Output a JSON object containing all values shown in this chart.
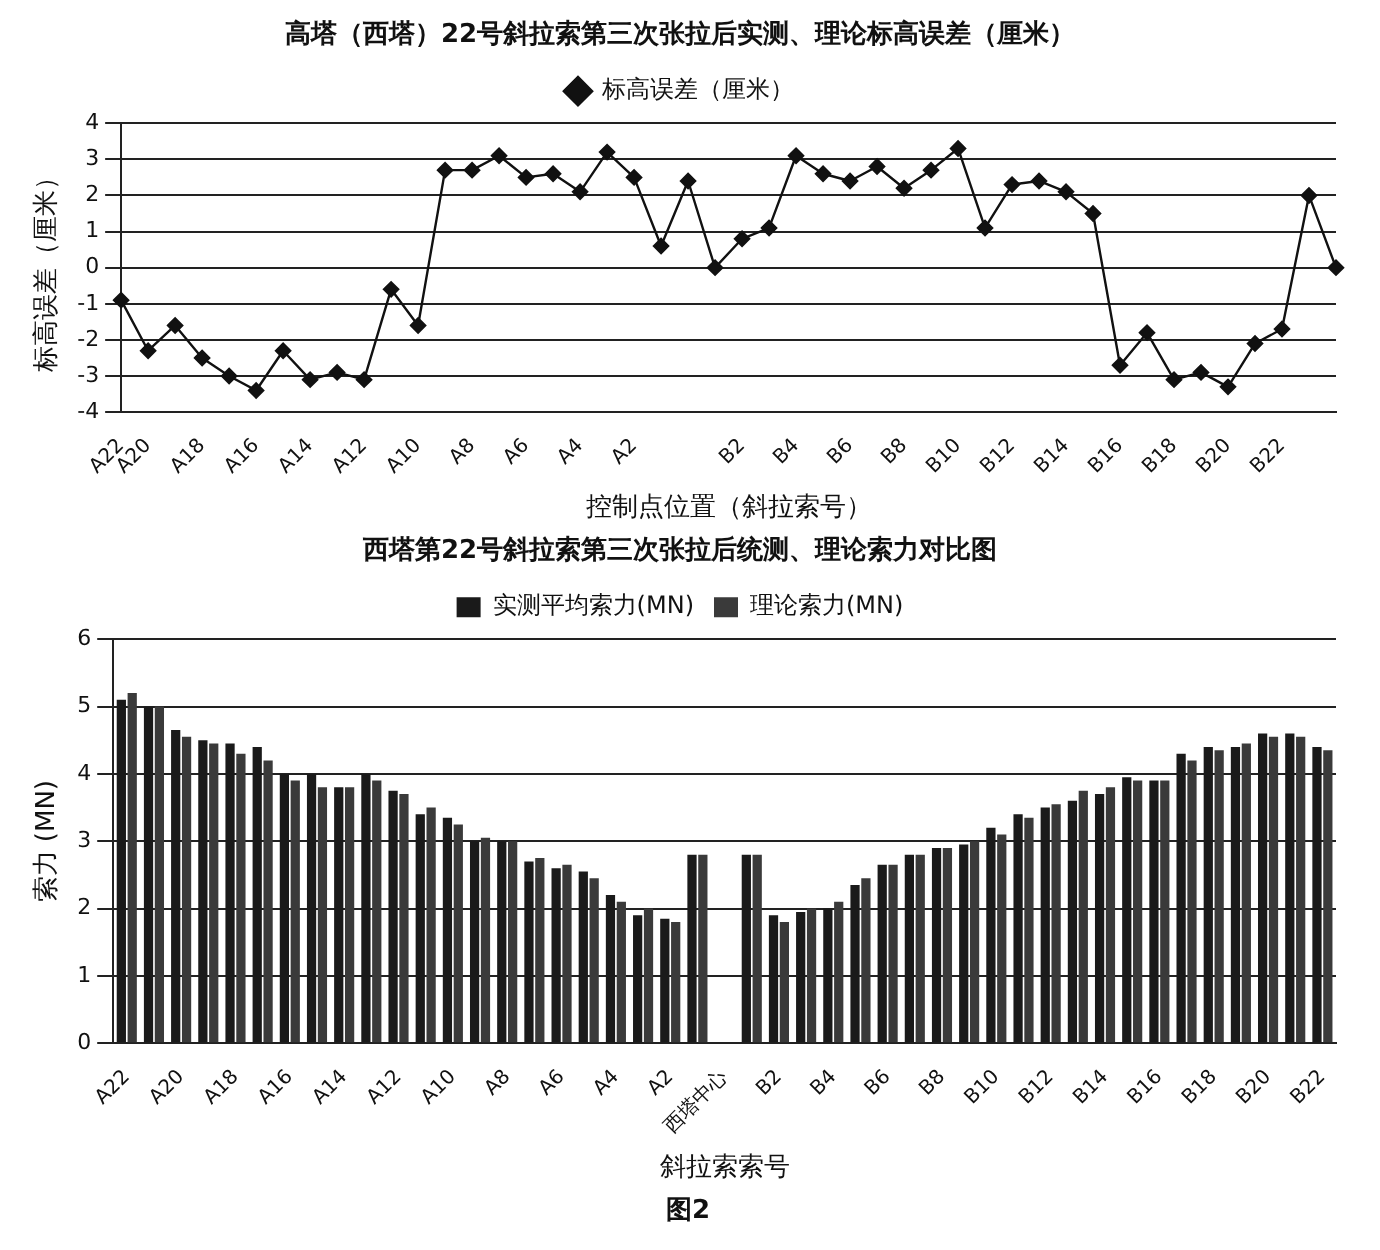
{
  "chart_data": [
    {
      "type": "line",
      "title": "高塔（西塔）22号斜拉索第三次张拉后实测、理论标高误差（厘米）",
      "xlabel": "控制点位置（斜拉索号）",
      "ylabel": "标高误差（厘米）",
      "categories": [
        "A22",
        "A20",
        null,
        "A18",
        null,
        "A16",
        null,
        "A14",
        null,
        "A12",
        null,
        "A10",
        null,
        "A8",
        null,
        "A6",
        null,
        "A4",
        null,
        "A2",
        null,
        null,
        null,
        "B2",
        null,
        "B4",
        null,
        "B6",
        null,
        "B8",
        null,
        "B10",
        null,
        "B12",
        null,
        "B14",
        null,
        "B16",
        null,
        "B18",
        null,
        "B20",
        null,
        "B22",
        null,
        null
      ],
      "series": [
        {
          "name": "标高误差（厘米）",
          "color": "#111111",
          "values": [
            -0.9,
            -2.3,
            -1.6,
            -2.5,
            -3.0,
            -3.4,
            -2.3,
            -3.1,
            -2.9,
            -3.1,
            -0.6,
            -1.6,
            2.7,
            2.7,
            3.1,
            2.5,
            2.6,
            2.1,
            3.2,
            2.5,
            0.6,
            2.4,
            0,
            0.8,
            1.1,
            3.1,
            2.6,
            2.4,
            2.8,
            2.2,
            2.7,
            3.3,
            1.1,
            2.3,
            2.4,
            2.1,
            1.5,
            -2.7,
            -1.8,
            -3.1,
            -2.9,
            -3.3,
            -2.1,
            -1.7,
            2.0,
            0
          ]
        }
      ],
      "ylim": [
        -4,
        4
      ],
      "yticks": [
        -4,
        -3,
        -2,
        -1,
        0,
        1,
        2,
        3,
        4
      ],
      "grid": "y",
      "legend": "top",
      "marker": "diamond",
      "line_style": "solid"
    },
    {
      "type": "bar",
      "title": "西塔第22号斜拉索第三次张拉后统测、理论索力对比图",
      "xlabel": "斜拉索索号",
      "ylabel": "索力 (MN)",
      "categories": [
        "A22",
        null,
        "A20",
        null,
        "A18",
        null,
        "A16",
        null,
        "A14",
        null,
        "A12",
        null,
        "A10",
        null,
        "A8",
        null,
        "A6",
        null,
        "A4",
        null,
        "A2",
        null,
        "西塔中心",
        null,
        "B2",
        null,
        "B4",
        null,
        "B6",
        null,
        "B8",
        null,
        "B10",
        null,
        "B12",
        null,
        "B14",
        null,
        "B16",
        null,
        "B18",
        null,
        "B20",
        null,
        "B22"
      ],
      "series": [
        {
          "name": "实测平均索力(MN)",
          "color": "#1a1a1a",
          "values": [
            5.1,
            5.0,
            4.65,
            4.5,
            4.45,
            4.4,
            4.0,
            4.0,
            3.8,
            4.0,
            3.75,
            3.4,
            3.35,
            3.0,
            3.0,
            2.7,
            2.6,
            2.55,
            2.2,
            1.9,
            1.85,
            2.8,
            null,
            2.8,
            1.9,
            1.95,
            2.0,
            2.35,
            2.65,
            2.8,
            2.9,
            2.95,
            3.2,
            3.4,
            3.5,
            3.6,
            3.7,
            3.95,
            3.9,
            4.3,
            4.4,
            4.4,
            4.6,
            4.6,
            4.4
          ]
        },
        {
          "name": "理论索力(MN)",
          "color": "#3a3a3a",
          "values": [
            5.2,
            5.0,
            4.55,
            4.45,
            4.3,
            4.2,
            3.9,
            3.8,
            3.8,
            3.9,
            3.7,
            3.5,
            3.25,
            3.05,
            3.0,
            2.75,
            2.65,
            2.45,
            2.1,
            2.0,
            1.8,
            2.8,
            null,
            2.8,
            1.8,
            2.0,
            2.1,
            2.45,
            2.65,
            2.8,
            2.9,
            3.0,
            3.1,
            3.35,
            3.55,
            3.75,
            3.8,
            3.9,
            3.9,
            4.2,
            4.35,
            4.45,
            4.55,
            4.55,
            4.35
          ]
        }
      ],
      "ylim": [
        0,
        6
      ],
      "yticks": [
        0,
        1,
        2,
        3,
        4,
        5,
        6
      ],
      "grid": "y",
      "legend": "top",
      "annotations": [
        "图2"
      ]
    }
  ]
}
